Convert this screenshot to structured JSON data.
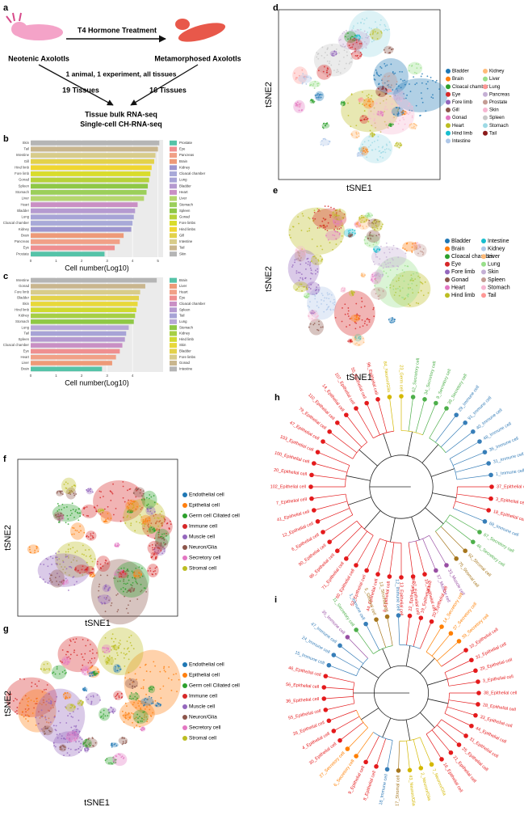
{
  "panel_labels": [
    "a",
    "b",
    "c",
    "d",
    "e",
    "f",
    "g",
    "h",
    "i"
  ],
  "schematic": {
    "treatment": "T4 Hormone Treatment",
    "left": "Neotenic Axolotls",
    "right": "Metamorphosed Axolotls",
    "note": "1 animal, 1 experiment, all tissues",
    "left_count": "19 Tissues",
    "right_count": "16 Tissues",
    "method1": "Tissue bulk RNA-seq",
    "method2": "Single-cell CH-RNA-seq"
  },
  "chart_data": [
    {
      "type": "bar",
      "xlabel": "Cell number(Log10)",
      "xlim": [
        0,
        5.2
      ],
      "xticks": [
        0,
        1,
        2,
        3,
        4,
        5
      ],
      "categories": [
        "Skin",
        "Tail",
        "Intestine",
        "Gill",
        "Hind limb",
        "Fore limb",
        "Gonad",
        "Spleen",
        "Stomach",
        "Liver",
        "Heart",
        "Bladder",
        "Lung",
        "Cloacal chamber",
        "Kidney",
        "Brain",
        "Pancreas",
        "Eye",
        "Prostate"
      ],
      "values": [
        5.05,
        5.0,
        4.9,
        4.85,
        4.75,
        4.7,
        4.65,
        4.6,
        4.55,
        4.45,
        4.2,
        4.1,
        4.05,
        4.0,
        3.95,
        3.65,
        3.5,
        3.3,
        2.9
      ],
      "colors": [
        "#b5b5b5",
        "#c9b68e",
        "#d8cc8a",
        "#e3d24a",
        "#f0d630",
        "#d9dc2c",
        "#b7d23a",
        "#8fc846",
        "#9bcf5a",
        "#b5d66e",
        "#c98fc4",
        "#b59ad0",
        "#a7a3d6",
        "#a8a9d8",
        "#9e96cf",
        "#ee9a78",
        "#f1a087",
        "#ef8f90",
        "#55c3a8"
      ],
      "legend": [
        {
          "name": "Prostate",
          "color": "#55c3a8"
        },
        {
          "name": "Eye",
          "color": "#ef8f90"
        },
        {
          "name": "Pancreas",
          "color": "#f1a087"
        },
        {
          "name": "Brain",
          "color": "#ee9a78"
        },
        {
          "name": "Kidney",
          "color": "#9e96cf"
        },
        {
          "name": "Cloacal chamber",
          "color": "#a8a9d8"
        },
        {
          "name": "Lung",
          "color": "#a7a3d6"
        },
        {
          "name": "Bladder",
          "color": "#b59ad0"
        },
        {
          "name": "Heart",
          "color": "#c98fc4"
        },
        {
          "name": "Liver",
          "color": "#b5d66e"
        },
        {
          "name": "Stomach",
          "color": "#9bcf5a"
        },
        {
          "name": "Spleen",
          "color": "#8fc846"
        },
        {
          "name": "Gonad",
          "color": "#b7d23a"
        },
        {
          "name": "Fore limbs",
          "color": "#d9dc2c"
        },
        {
          "name": "Hind limbs",
          "color": "#f0d630"
        },
        {
          "name": "Gill",
          "color": "#e3d24a"
        },
        {
          "name": "Intestine",
          "color": "#d8cc8a"
        },
        {
          "name": "Tail",
          "color": "#c9b68e"
        },
        {
          "name": "Skin",
          "color": "#b5b5b5"
        }
      ]
    },
    {
      "type": "bar",
      "xlabel": "Cell number(Log10)",
      "xlim": [
        0,
        5.2
      ],
      "xticks": [
        0,
        1,
        2,
        3,
        4
      ],
      "categories": [
        "Intestine",
        "Gonad",
        "Fore limb",
        "Bladder",
        "Skin",
        "Hind limb",
        "Kidney",
        "Stomach",
        "Lung",
        "Tail",
        "Spleen",
        "Cloacal chamber",
        "Eye",
        "Heart",
        "Liver",
        "Brain"
      ],
      "values": [
        4.95,
        4.5,
        4.3,
        4.25,
        4.2,
        4.15,
        4.1,
        4.05,
        3.85,
        3.75,
        3.7,
        3.6,
        3.5,
        3.35,
        3.2,
        2.8
      ],
      "colors": [
        "#b5b5b5",
        "#c9b68e",
        "#d8cc8a",
        "#e3d24a",
        "#e8d83a",
        "#d0da30",
        "#a6cf45",
        "#8fc846",
        "#b7a8d6",
        "#a7a3d6",
        "#b59ad0",
        "#c98fc4",
        "#ef8f90",
        "#f1a087",
        "#ee9a78",
        "#55c3a8"
      ],
      "legend": [
        {
          "name": "Brain",
          "color": "#55c3a8"
        },
        {
          "name": "Liver",
          "color": "#ee9a78"
        },
        {
          "name": "Heart",
          "color": "#f1a087"
        },
        {
          "name": "Eye",
          "color": "#ef8f90"
        },
        {
          "name": "Cloacal chamber",
          "color": "#c98fc4"
        },
        {
          "name": "Spleen",
          "color": "#b59ad0"
        },
        {
          "name": "Tail",
          "color": "#a7a3d6"
        },
        {
          "name": "Lung",
          "color": "#b7a8d6"
        },
        {
          "name": "Stomach",
          "color": "#8fc846"
        },
        {
          "name": "Kidney",
          "color": "#a6cf45"
        },
        {
          "name": "Hind limb",
          "color": "#d0da30"
        },
        {
          "name": "Skin",
          "color": "#e8d83a"
        },
        {
          "name": "Bladder",
          "color": "#e3d24a"
        },
        {
          "name": "Fore limbs",
          "color": "#d8cc8a"
        },
        {
          "name": "Gonad",
          "color": "#c9b68e"
        },
        {
          "name": "Intestine",
          "color": "#b5b5b5"
        }
      ]
    }
  ],
  "tsne": [
    {
      "xlabel": "tSNE1",
      "ylabel": "tSNE2",
      "legend": [
        {
          "name": "Bladder",
          "color": "#1f77b4"
        },
        {
          "name": "Brain",
          "color": "#ff7f0e"
        },
        {
          "name": "Cloacal chamber",
          "color": "#2ca02c"
        },
        {
          "name": "Eye",
          "color": "#d62728"
        },
        {
          "name": "Fore limb",
          "color": "#9467bd"
        },
        {
          "name": "Gill",
          "color": "#8c564b"
        },
        {
          "name": "Gonad",
          "color": "#e377c2"
        },
        {
          "name": "Heart",
          "color": "#bcbd22"
        },
        {
          "name": "Hind limb",
          "color": "#17becf"
        },
        {
          "name": "Intestine",
          "color": "#aec7e8"
        },
        {
          "name": "Kidney",
          "color": "#ffbb78"
        },
        {
          "name": "Liver",
          "color": "#98df8a"
        },
        {
          "name": "Lung",
          "color": "#ff9896"
        },
        {
          "name": "Pancreas",
          "color": "#c5b0d5"
        },
        {
          "name": "Prostate",
          "color": "#c49c94"
        },
        {
          "name": "Skin",
          "color": "#f7b6d2"
        },
        {
          "name": "Spleen",
          "color": "#c7c7c7"
        },
        {
          "name": "Stomach",
          "color": "#9edae5"
        },
        {
          "name": "Tail",
          "color": "#8b1a1a"
        }
      ]
    },
    {
      "xlabel": "tSNE1",
      "ylabel": "tSNE2",
      "legend": [
        {
          "name": "Bladder",
          "color": "#1f77b4"
        },
        {
          "name": "Brain",
          "color": "#ff7f0e"
        },
        {
          "name": "Cloacal chamber",
          "color": "#2ca02c"
        },
        {
          "name": "Eye",
          "color": "#d62728"
        },
        {
          "name": "Fore limb",
          "color": "#9467bd"
        },
        {
          "name": "Gonad",
          "color": "#8c564b"
        },
        {
          "name": "Heart",
          "color": "#e377c2"
        },
        {
          "name": "Hind limb",
          "color": "#bcbd22"
        },
        {
          "name": "Intestine",
          "color": "#17becf"
        },
        {
          "name": "Kidney",
          "color": "#aec7e8"
        },
        {
          "name": "Liver",
          "color": "#ffbb78"
        },
        {
          "name": "Lung",
          "color": "#98df8a"
        },
        {
          "name": "Skin",
          "color": "#c5b0d5"
        },
        {
          "name": "Spleen",
          "color": "#c49c94"
        },
        {
          "name": "Stomach",
          "color": "#f7b6d2"
        },
        {
          "name": "Tail",
          "color": "#ff9896"
        }
      ]
    },
    {
      "xlabel": "tSNE1",
      "ylabel": "tSNE2",
      "legend": [
        {
          "name": "Endothelial cell",
          "color": "#1f77b4"
        },
        {
          "name": "Epithelial cell",
          "color": "#ff7f0e"
        },
        {
          "name": "Germ cell Ciliated cell",
          "color": "#2ca02c"
        },
        {
          "name": "Immune cell",
          "color": "#d62728"
        },
        {
          "name": "Muscle cell",
          "color": "#9467bd"
        },
        {
          "name": "Neuron/Glia",
          "color": "#8c564b"
        },
        {
          "name": "Secretory cell",
          "color": "#e377c2"
        },
        {
          "name": "Stromal cell",
          "color": "#bcbd22"
        }
      ]
    },
    {
      "xlabel": "tSNE1",
      "ylabel": "tSNE2",
      "legend": [
        {
          "name": "Endothelial cell",
          "color": "#1f77b4"
        },
        {
          "name": "Epithelial cell",
          "color": "#ff7f0e"
        },
        {
          "name": "Germ cell Ciliated cell",
          "color": "#2ca02c"
        },
        {
          "name": "Immune cell",
          "color": "#d62728"
        },
        {
          "name": "Muscle cell",
          "color": "#9467bd"
        },
        {
          "name": "Neuron/Glia",
          "color": "#8c564b"
        },
        {
          "name": "Secretory cell",
          "color": "#e377c2"
        },
        {
          "name": "Stromal cell",
          "color": "#bcbd22"
        }
      ]
    }
  ],
  "dendrograms": [
    {
      "leaves": [
        {
          "label": "37_Epithelial cell",
          "color": "#e41a1c"
        },
        {
          "label": "3_Epithelial cell",
          "color": "#e41a1c"
        },
        {
          "label": "18_Epithelial cell",
          "color": "#e41a1c"
        },
        {
          "label": "69_Immune cell",
          "color": "#377eb8"
        },
        {
          "label": "67_Secretory cell",
          "color": "#4daf4a"
        },
        {
          "label": "46_Secretory cell",
          "color": "#4daf4a"
        },
        {
          "label": "92_Stromal cell",
          "color": "#a6761d"
        },
        {
          "label": "75_Stromal cell",
          "color": "#a6761d"
        },
        {
          "label": "33_Muscle cell",
          "color": "#984ea3"
        },
        {
          "label": "57_Muscle cell",
          "color": "#984ea3"
        },
        {
          "label": "19_Epithelial cell",
          "color": "#e41a1c"
        },
        {
          "label": "27_Epithelial cell",
          "color": "#e41a1c"
        },
        {
          "label": "13_Epithelial cell",
          "color": "#e41a1c"
        },
        {
          "label": "8_Epithelial cell",
          "color": "#e41a1c"
        },
        {
          "label": "44_Epithelial cell",
          "color": "#e41a1c"
        },
        {
          "label": "52_Epithelial cell",
          "color": "#e41a1c"
        },
        {
          "label": "60_Epithelial cell",
          "color": "#e41a1c"
        },
        {
          "label": "71_Epithelial cell",
          "color": "#e41a1c"
        },
        {
          "label": "86_Epithelial cell",
          "color": "#e41a1c"
        },
        {
          "label": "90_Epithelial cell",
          "color": "#e41a1c"
        },
        {
          "label": "6_Epithelial cell",
          "color": "#e41a1c"
        },
        {
          "label": "12_Epithelial cell",
          "color": "#e41a1c"
        },
        {
          "label": "41_Epithelial cell",
          "color": "#e41a1c"
        },
        {
          "label": "7_Epithelial cell",
          "color": "#e41a1c"
        },
        {
          "label": "102_Epithelial cell",
          "color": "#e41a1c"
        },
        {
          "label": "20_Epithelial cell",
          "color": "#e41a1c"
        },
        {
          "label": "100_Epithelial cell",
          "color": "#e41a1c"
        },
        {
          "label": "103_Epithelial cell",
          "color": "#e41a1c"
        },
        {
          "label": "47_Epithelial cell",
          "color": "#e41a1c"
        },
        {
          "label": "79_Epithelial cell",
          "color": "#e41a1c"
        },
        {
          "label": "110_Epithelial cell",
          "color": "#e41a1c"
        },
        {
          "label": "14_Epithelial cell",
          "color": "#e41a1c"
        },
        {
          "label": "107_Epithelial cell",
          "color": "#e41a1c"
        },
        {
          "label": "55_Epithelial cell",
          "color": "#e41a1c"
        },
        {
          "label": "96_Epithelial cell",
          "color": "#e41a1c"
        },
        {
          "label": "84_Neuron/Glia",
          "color": "#d4b800"
        },
        {
          "label": "23_Germ cell",
          "color": "#d4b800"
        },
        {
          "label": "62_Secretory cell",
          "color": "#4daf4a"
        },
        {
          "label": "34_Secretory cell",
          "color": "#4daf4a"
        },
        {
          "label": "9_Secretory cell",
          "color": "#4daf4a"
        },
        {
          "label": "39_Secretory cell",
          "color": "#4daf4a"
        },
        {
          "label": "29_Immune cell",
          "color": "#377eb8"
        },
        {
          "label": "91_Immune cell",
          "color": "#377eb8"
        },
        {
          "label": "40_Immune cell",
          "color": "#377eb8"
        },
        {
          "label": "48_Immune cell",
          "color": "#377eb8"
        },
        {
          "label": "36_Immune cell",
          "color": "#377eb8"
        },
        {
          "label": "31_Immune cell",
          "color": "#377eb8"
        },
        {
          "label": "1_Immune cell",
          "color": "#377eb8"
        }
      ]
    },
    {
      "leaves": [
        {
          "label": "38_Epithelial cell",
          "color": "#e41a1c"
        },
        {
          "label": "28_Epithelial cell",
          "color": "#e41a1c"
        },
        {
          "label": "33_Epithelial cell",
          "color": "#e41a1c"
        },
        {
          "label": "44_Epithelial cell",
          "color": "#e41a1c"
        },
        {
          "label": "31_Epithelial cell",
          "color": "#e41a1c"
        },
        {
          "label": "25_Epithelial cell",
          "color": "#e41a1c"
        },
        {
          "label": "21_Epithelial cell",
          "color": "#e41a1c"
        },
        {
          "label": "16_Epithelial cell",
          "color": "#e41a1c"
        },
        {
          "label": "7_Neuron/Glia",
          "color": "#d4b800"
        },
        {
          "label": "2_Neuron/Glia",
          "color": "#d4b800"
        },
        {
          "label": "43_Neuron/Glia",
          "color": "#d4b800"
        },
        {
          "label": "17_Stromal cell",
          "color": "#a6761d"
        },
        {
          "label": "18_Immune cell",
          "color": "#377eb8"
        },
        {
          "label": "8_Epithelial cell",
          "color": "#e41a1c"
        },
        {
          "label": "9_Epithelial cell",
          "color": "#e41a1c"
        },
        {
          "label": "6_Secretory cell",
          "color": "#ff7f00"
        },
        {
          "label": "27_Secretory cell",
          "color": "#ff7f00"
        },
        {
          "label": "30_Epithelial cell",
          "color": "#e41a1c"
        },
        {
          "label": "4_Epithelial cell",
          "color": "#e41a1c"
        },
        {
          "label": "26_Epithelial cell",
          "color": "#e41a1c"
        },
        {
          "label": "55_Epithelial cell",
          "color": "#e41a1c"
        },
        {
          "label": "36_Epithelial cell",
          "color": "#e41a1c"
        },
        {
          "label": "56_Epithelial cell",
          "color": "#e41a1c"
        },
        {
          "label": "46_Epithelial cell",
          "color": "#e41a1c"
        },
        {
          "label": "15_Immune cell",
          "color": "#377eb8"
        },
        {
          "label": "24_Immune cell",
          "color": "#377eb8"
        },
        {
          "label": "47_Immune cell",
          "color": "#377eb8"
        },
        {
          "label": "35_Immune cell",
          "color": "#984ea3"
        },
        {
          "label": "11_Secretory cell",
          "color": "#4daf4a"
        },
        {
          "label": "1_Immune cell",
          "color": "#377eb8"
        },
        {
          "label": "5_Stromal cell",
          "color": "#a6761d"
        },
        {
          "label": "13_Stromal cell",
          "color": "#a6761d"
        },
        {
          "label": "12_Immune cell",
          "color": "#377eb8"
        },
        {
          "label": "22_Epithelial cell",
          "color": "#e41a1c"
        },
        {
          "label": "19_Epithelial cell",
          "color": "#e41a1c"
        },
        {
          "label": "20_Epithelial cell",
          "color": "#e41a1c"
        },
        {
          "label": "14_Secretory cell",
          "color": "#ff7f00"
        },
        {
          "label": "37_Secretory cell",
          "color": "#ff7f00"
        },
        {
          "label": "39_Secretory cell",
          "color": "#ff7f00"
        },
        {
          "label": "10_Epithelial cell",
          "color": "#e41a1c"
        },
        {
          "label": "32_Epithelial cell",
          "color": "#e41a1c"
        },
        {
          "label": "29_Epithelial cell",
          "color": "#e41a1c"
        },
        {
          "label": "3_Epithelial cell",
          "color": "#e41a1c"
        }
      ]
    }
  ]
}
